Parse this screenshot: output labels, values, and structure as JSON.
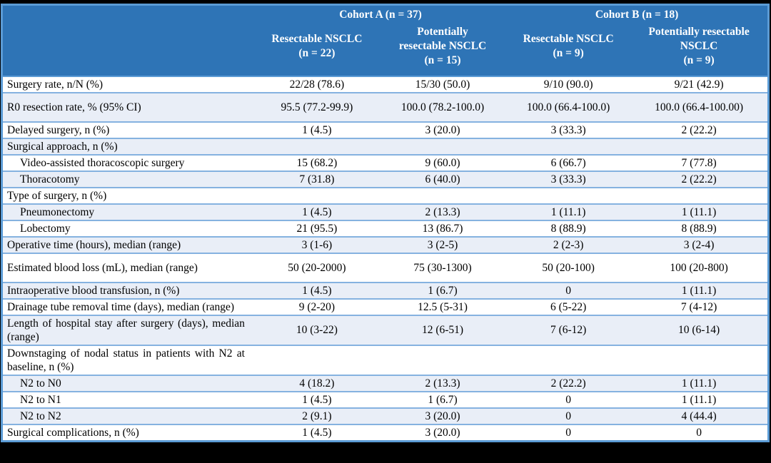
{
  "colors": {
    "header_bg": "#2E74B6",
    "header_text": "#FFFFFF",
    "shaded_row": "#E9EEF7",
    "separator": "#85B2E0",
    "outer_border": "#5B9BD5",
    "frame_bg": "#000000",
    "body_text": "#000000"
  },
  "table": {
    "corner_label": "",
    "col_groups": [
      {
        "label": "Cohort A (n = 37)"
      },
      {
        "label": "Cohort B (n = 18)"
      }
    ],
    "columns": [
      {
        "label": "Resectable NSCLC\n(n = 22)"
      },
      {
        "label": "Potentially\nresectable NSCLC\n(n = 15)"
      },
      {
        "label": "Resectable NSCLC\n(n = 9)"
      },
      {
        "label": "Potentially resectable\nNSCLC\n(n = 9)"
      }
    ],
    "rows": [
      {
        "label": "Surgery rate, n/N (%)",
        "indent": false,
        "shaded": false,
        "tall": false,
        "values": [
          "22/28 (78.6)",
          "15/30 (50.0)",
          "9/10 (90.0)",
          "9/21 (42.9)"
        ]
      },
      {
        "label": "R0 resection rate, % (95% CI)",
        "indent": false,
        "shaded": true,
        "tall": true,
        "values": [
          "95.5 (77.2-99.9)",
          "100.0 (78.2-100.0)",
          "100.0 (66.4-100.0)",
          "100.0 (66.4-100.00)"
        ]
      },
      {
        "label": "Delayed surgery, n (%)",
        "indent": false,
        "shaded": false,
        "tall": false,
        "values": [
          "1 (4.5)",
          "3 (20.0)",
          "3 (33.3)",
          "2 (22.2)"
        ]
      },
      {
        "label": "Surgical approach, n (%)",
        "indent": false,
        "shaded": true,
        "tall": false,
        "values": [
          "",
          "",
          "",
          ""
        ]
      },
      {
        "label": "Video-assisted thoracoscopic surgery",
        "indent": true,
        "shaded": false,
        "tall": false,
        "values": [
          "15 (68.2)",
          "9 (60.0)",
          "6 (66.7)",
          "7 (77.8)"
        ]
      },
      {
        "label": "Thoracotomy",
        "indent": true,
        "shaded": true,
        "tall": false,
        "values": [
          "7 (31.8)",
          "6 (40.0)",
          "3 (33.3)",
          "2 (22.2)"
        ]
      },
      {
        "label": "Type of surgery, n (%)",
        "indent": false,
        "shaded": false,
        "tall": false,
        "values": [
          "",
          "",
          "",
          ""
        ]
      },
      {
        "label": "Pneumonectomy",
        "indent": true,
        "shaded": true,
        "tall": false,
        "values": [
          "1 (4.5)",
          "2 (13.3)",
          "1 (11.1)",
          "1 (11.1)"
        ]
      },
      {
        "label": "Lobectomy",
        "indent": true,
        "shaded": false,
        "tall": false,
        "values": [
          "21 (95.5)",
          "13 (86.7)",
          "8 (88.9)",
          "8 (88.9)"
        ]
      },
      {
        "label": "Operative time (hours), median (range)",
        "indent": false,
        "shaded": true,
        "tall": false,
        "values": [
          "3 (1-6)",
          "3 (2-5)",
          "2 (2-3)",
          "3 (2-4)"
        ]
      },
      {
        "label": "Estimated blood loss (mL), median (range)",
        "indent": false,
        "shaded": false,
        "tall": true,
        "values": [
          "50 (20-2000)",
          "75 (30-1300)",
          "50 (20-100)",
          "100 (20-800)"
        ]
      },
      {
        "label": "Intraoperative blood transfusion, n (%)",
        "indent": false,
        "shaded": true,
        "tall": false,
        "values": [
          "1 (4.5)",
          "1 (6.7)",
          "0",
          "1 (11.1)"
        ]
      },
      {
        "label": "Drainage tube removal time (days), median (range)",
        "indent": false,
        "shaded": false,
        "tall": false,
        "values": [
          "9 (2-20)",
          "12.5 (5-31)",
          "6 (5-22)",
          "7 (4-12)"
        ]
      },
      {
        "label": "Length of hospital stay after surgery (days), median (range)",
        "indent": false,
        "shaded": true,
        "tall": false,
        "values": [
          "10 (3-22)",
          "12 (6-51)",
          "7 (6-12)",
          "10 (6-14)"
        ]
      },
      {
        "label": "Downstaging of nodal status in patients with N2 at baseline, n (%)",
        "indent": false,
        "shaded": false,
        "tall": false,
        "values": [
          "",
          "",
          "",
          ""
        ]
      },
      {
        "label": "N2 to N0",
        "indent": true,
        "shaded": true,
        "tall": false,
        "values": [
          "4 (18.2)",
          "2 (13.3)",
          "2 (22.2)",
          "1 (11.1)"
        ]
      },
      {
        "label": "N2 to N1",
        "indent": true,
        "shaded": false,
        "tall": false,
        "values": [
          "1 (4.5)",
          "1 (6.7)",
          "0",
          "1 (11.1)"
        ]
      },
      {
        "label": "N2 to N2",
        "indent": true,
        "shaded": true,
        "tall": false,
        "values": [
          "2 (9.1)",
          "3 (20.0)",
          "0",
          "4 (44.4)"
        ]
      },
      {
        "label": "Surgical complications, n (%)",
        "indent": false,
        "shaded": false,
        "tall": false,
        "values": [
          "1 (4.5)",
          "3 (20.0)",
          "0",
          "0"
        ]
      }
    ]
  }
}
